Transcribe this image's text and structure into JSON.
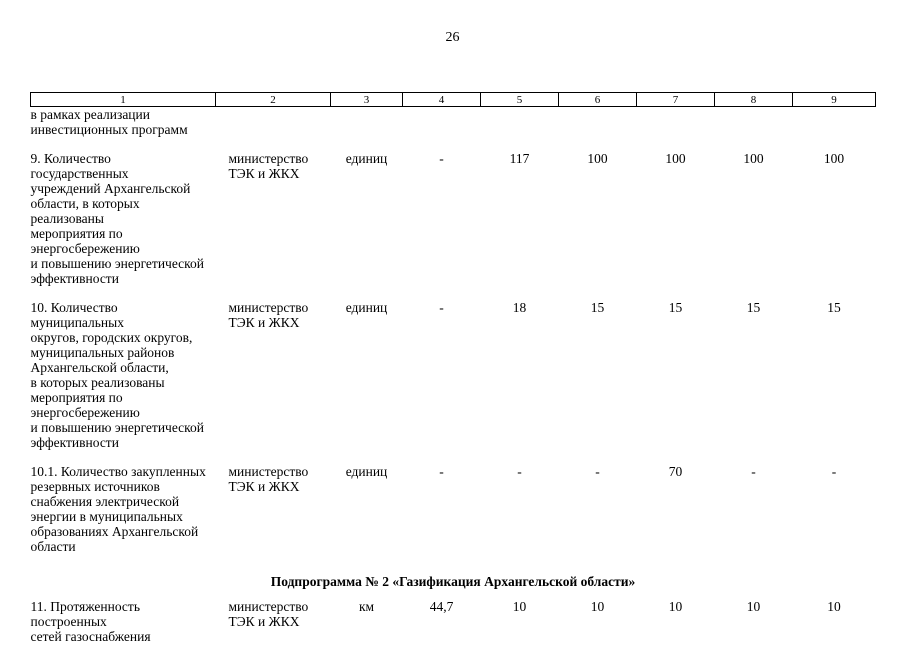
{
  "page": {
    "number": "26"
  },
  "table": {
    "column_headers": [
      "1",
      "2",
      "3",
      "4",
      "5",
      "6",
      "7",
      "8",
      "9"
    ],
    "rows": [
      {
        "type": "data",
        "cells": [
          "в рамках реализации\nинвестиционных программ",
          "",
          "",
          "",
          "",
          "",
          "",
          "",
          ""
        ]
      },
      {
        "type": "data",
        "cells": [
          "9. Количество государственных\nучреждений Архангельской\nобласти, в которых реализованы\nмероприятия по\nэнергосбережению\nи повышению энергетической\nэффективности",
          "министерство\nТЭК и ЖКХ",
          "единиц",
          "-",
          "117",
          "100",
          "100",
          "100",
          "100"
        ]
      },
      {
        "type": "data",
        "cells": [
          "10. Количество муниципальных\nокругов, городских округов,\nмуниципальных районов\nАрхангельской области,\nв которых реализованы\nмероприятия по\nэнергосбережению\nи повышению энергетической\nэффективности",
          "министерство\nТЭК и ЖКХ",
          "единиц",
          "-",
          "18",
          "15",
          "15",
          "15",
          "15"
        ]
      },
      {
        "type": "data",
        "cells": [
          "10.1. Количество закупленных\nрезервных источников\nснабжения электрической\nэнергии в муниципальных\nобразованиях Архангельской\nобласти",
          "министерство\nТЭК и ЖКХ",
          "единиц",
          "-",
          "-",
          "-",
          "70",
          "-",
          "-"
        ]
      },
      {
        "type": "section",
        "label": "Подпрограмма № 2 «Газификация Архангельской области»"
      },
      {
        "type": "data",
        "cells": [
          "11. Протяженность построенных\nсетей газоснабжения",
          "министерство\nТЭК и ЖКХ",
          "км",
          "44,7",
          "10",
          "10",
          "10",
          "10",
          "10"
        ]
      }
    ]
  }
}
